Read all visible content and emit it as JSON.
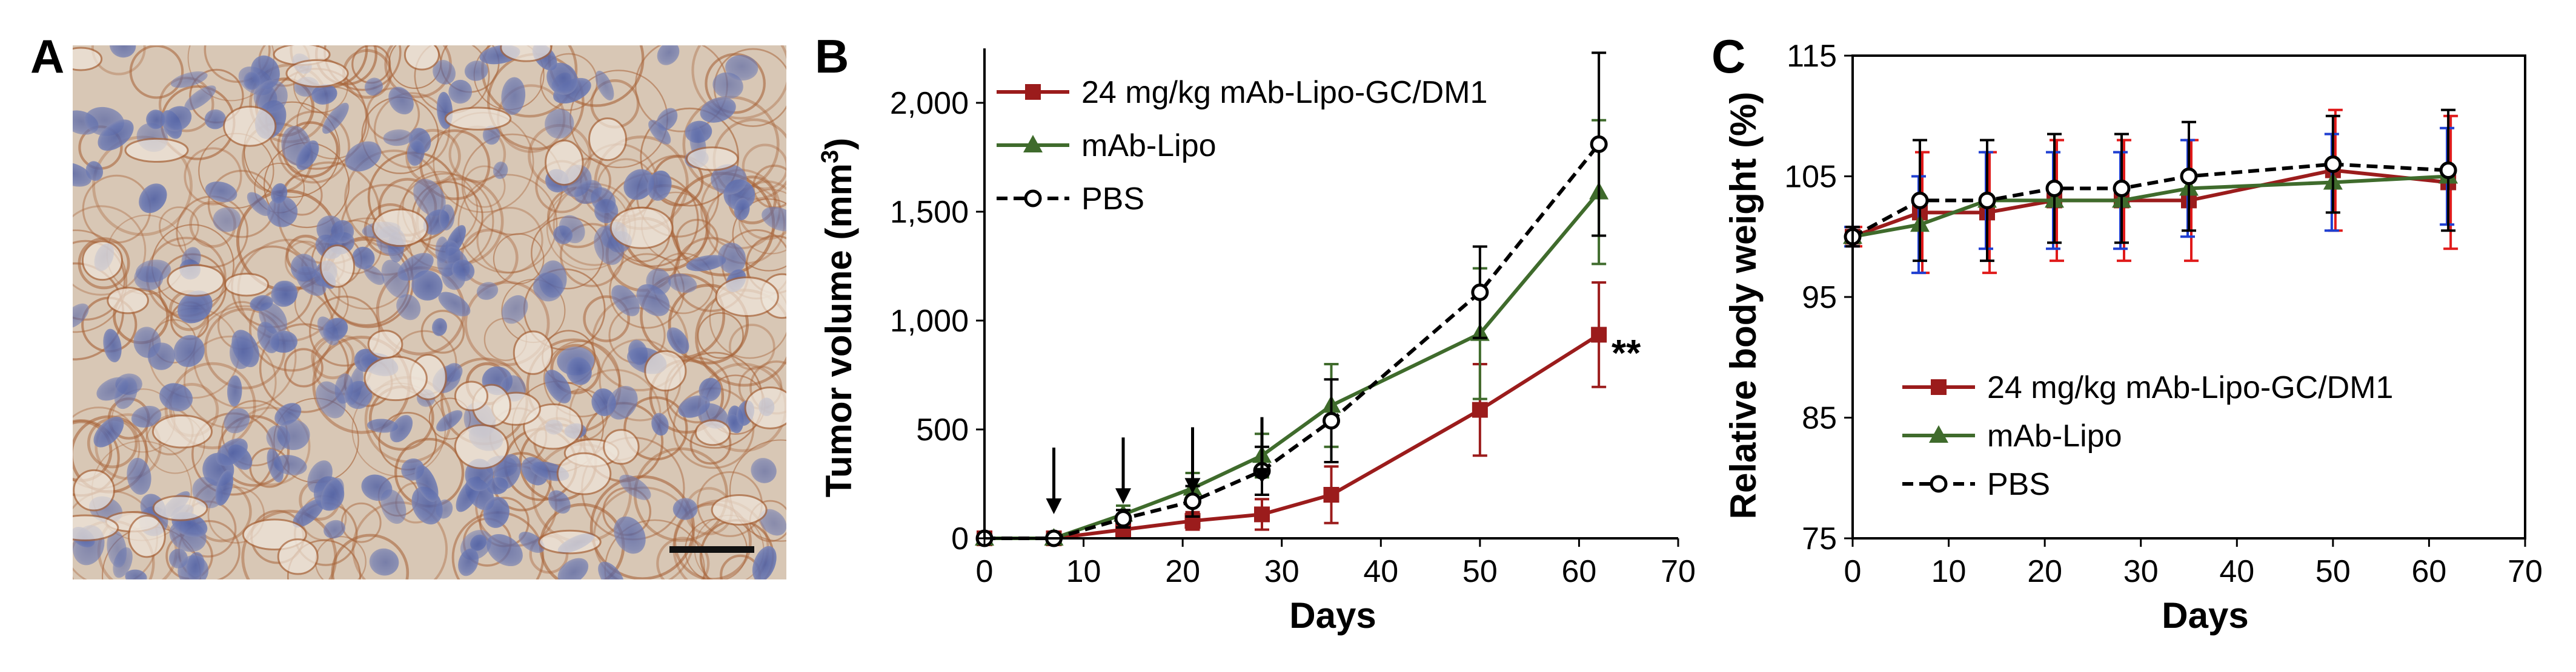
{
  "panels": {
    "a": {
      "letter": "A"
    },
    "b": {
      "letter": "B"
    },
    "c": {
      "letter": "C"
    }
  },
  "colors": {
    "treated": "#9b1c1c",
    "mablipo": "#3f6b2c",
    "pbs": "#000000",
    "stain_bg": "#d6c4b2",
    "stain_cell": "#5a6aa6",
    "stain_membrane": "#a8643a",
    "errbar_red": "#e01a1a",
    "errbar_blue": "#1f3fd1"
  },
  "chart_data": [
    {
      "id": "B",
      "type": "line",
      "title": "",
      "xlabel": "Days",
      "ylabel": "Tumor volume (mm",
      "ylabel_sup": "3",
      "ylabel_close": ")",
      "xlim": [
        0,
        70
      ],
      "ylim": [
        0,
        2250
      ],
      "xticks": [
        0,
        10,
        20,
        30,
        40,
        50,
        60,
        70
      ],
      "xtick_labels": [
        "0",
        "10",
        "20",
        "30",
        "40",
        "50",
        "60",
        "70"
      ],
      "yticks": [
        0,
        500,
        1000,
        1500,
        2000
      ],
      "ytick_labels": [
        "0",
        "500",
        "1,000",
        "1,500",
        "2,000"
      ],
      "legend_position": "top-left",
      "dosing_arrows_days": [
        7,
        14,
        21,
        28
      ],
      "annotation": {
        "text": "**",
        "x": 62,
        "y": 935
      },
      "series": [
        {
          "name": "24 mg/kg mAb-Lipo-GC/DM1",
          "key": "treated",
          "marker": "square",
          "dash": false,
          "x": [
            0,
            7,
            14,
            21,
            28,
            35,
            50,
            62
          ],
          "y": [
            0,
            0,
            40,
            80,
            110,
            200,
            590,
            935
          ],
          "err": [
            0,
            0,
            20,
            40,
            70,
            130,
            210,
            240
          ]
        },
        {
          "name": "mAb-Lipo",
          "key": "mablipo",
          "marker": "triangle",
          "dash": false,
          "x": [
            0,
            7,
            14,
            21,
            28,
            35,
            50,
            62
          ],
          "y": [
            0,
            0,
            110,
            230,
            380,
            610,
            940,
            1590
          ],
          "err": [
            0,
            0,
            40,
            70,
            100,
            190,
            300,
            330
          ]
        },
        {
          "name": "PBS",
          "key": "pbs",
          "marker": "open-circle",
          "dash": true,
          "x": [
            0,
            7,
            14,
            21,
            28,
            35,
            50,
            62
          ],
          "y": [
            0,
            0,
            90,
            170,
            310,
            540,
            1130,
            1810
          ],
          "err": [
            0,
            0,
            40,
            70,
            110,
            190,
            210,
            420
          ]
        }
      ]
    },
    {
      "id": "C",
      "type": "line",
      "title": "",
      "xlabel": "Days",
      "ylabel": "Relative body weight (%)",
      "xlim": [
        0,
        70
      ],
      "ylim": [
        75,
        115
      ],
      "xticks": [
        0,
        10,
        20,
        30,
        40,
        50,
        60,
        70
      ],
      "xtick_labels": [
        "0",
        "10",
        "20",
        "30",
        "40",
        "50",
        "60",
        "70"
      ],
      "yticks": [
        75,
        85,
        95,
        105,
        115
      ],
      "ytick_labels": [
        "75",
        "85",
        "95",
        "105",
        "115"
      ],
      "legend_position": "lower-left",
      "series": [
        {
          "name": "24 mg/kg mAb-Lipo-GC/DM1",
          "key": "treated",
          "marker": "square",
          "dash": false,
          "x": [
            0,
            7,
            14,
            21,
            28,
            35,
            50,
            62
          ],
          "y": [
            100,
            102,
            102,
            103,
            103,
            103,
            105.5,
            104.5
          ],
          "err": [
            0.8,
            5,
            5,
            5,
            5,
            5,
            5,
            5.5
          ]
        },
        {
          "name": "mAb-Lipo",
          "key": "mablipo",
          "marker": "triangle",
          "dash": false,
          "x": [
            0,
            7,
            14,
            21,
            28,
            35,
            50,
            62
          ],
          "y": [
            100,
            101,
            103,
            103,
            103,
            104,
            104.5,
            105
          ],
          "err": [
            0.8,
            4,
            4,
            4,
            4,
            4,
            4,
            4
          ]
        },
        {
          "name": "PBS",
          "key": "pbs",
          "marker": "open-circle",
          "dash": true,
          "x": [
            0,
            7,
            14,
            21,
            28,
            35,
            50,
            62
          ],
          "y": [
            100,
            103,
            103,
            104,
            104,
            105,
            106,
            105.5
          ],
          "err": [
            0.8,
            5,
            5,
            4.5,
            4.5,
            4.5,
            4,
            5
          ]
        }
      ]
    }
  ]
}
